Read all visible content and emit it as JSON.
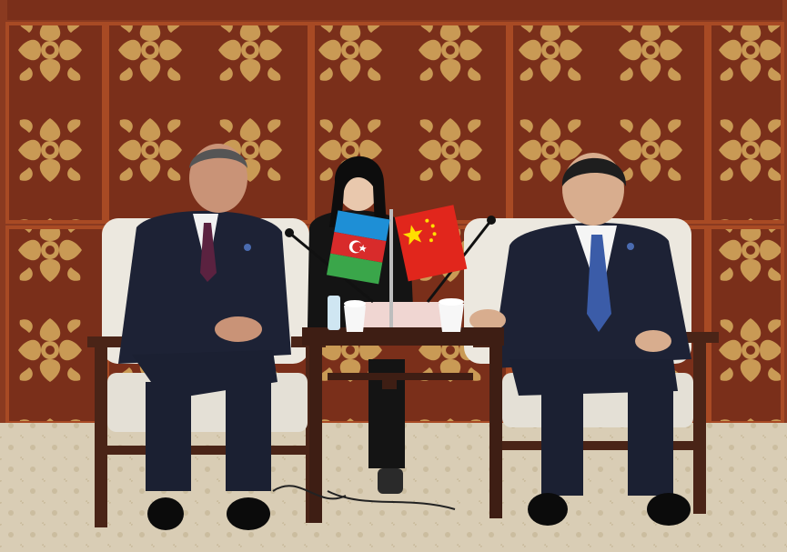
{
  "image": {
    "nameplate_text": "",
    "colors": {
      "wall": "#7a2f1a",
      "wall_frame": "#a84a24",
      "carving": "#c99a55",
      "carpet": "#d9cdb5",
      "chair_wood": "#4a2417",
      "chair_cushion": "#ece8df",
      "suit_dark": "#1d2235",
      "table": "#3e1e14",
      "flag_azerbaijan_blue": "#1e8fd6",
      "flag_azerbaijan_red": "#d82b2b",
      "flag_azerbaijan_green": "#3aa64a",
      "flag_china_red": "#e1261c",
      "flag_china_star": "#ffde00"
    }
  }
}
